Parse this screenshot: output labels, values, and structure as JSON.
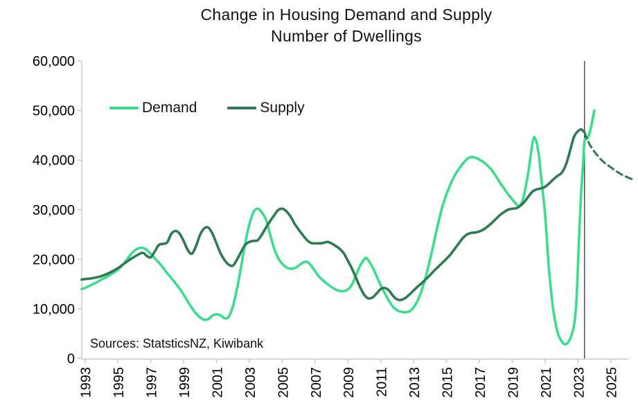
{
  "chart_data": {
    "type": "line",
    "title": "Change in Housing Demand and Supply",
    "subtitle": "Number of Dwellings",
    "source_note": "Sources: StatsticsNZ, Kiwibank",
    "grid": false,
    "legend_position": "top-left-inside",
    "xlabel": "",
    "ylabel": "",
    "xlim": [
      1992.8,
      2026.6
    ],
    "ylim": [
      0,
      60000
    ],
    "x_ticks": [
      1993,
      1995,
      1997,
      1999,
      2001,
      2003,
      2005,
      2007,
      2009,
      2011,
      2013,
      2015,
      2017,
      2019,
      2021,
      2023,
      2025
    ],
    "y_ticks": [
      {
        "value": 0,
        "label": "0"
      },
      {
        "value": 10000,
        "label": "10,000"
      },
      {
        "value": 20000,
        "label": "20,000"
      },
      {
        "value": 30000,
        "label": "30,000"
      },
      {
        "value": 40000,
        "label": "40,000"
      },
      {
        "value": 50000,
        "label": "50,000"
      },
      {
        "value": 60000,
        "label": "60,000"
      }
    ],
    "colors": {
      "demand": "#3BDD8D",
      "supply": "#2E7B52",
      "axis": "#c8c8c8",
      "forecast_divider": "#3f3f3f",
      "background": "#ffffff"
    },
    "forecast_divider_x": 2023.4,
    "series": [
      {
        "name": "Demand",
        "color": "#3BDD8D",
        "style": "solid",
        "in_legend": true,
        "points": [
          [
            1992.8,
            14000
          ],
          [
            1993,
            14200
          ],
          [
            1993.25,
            14600
          ],
          [
            1993.5,
            15000
          ],
          [
            1993.75,
            15400
          ],
          [
            1994,
            15900
          ],
          [
            1994.25,
            16300
          ],
          [
            1994.5,
            16800
          ],
          [
            1994.75,
            17300
          ],
          [
            1995,
            17900
          ],
          [
            1995.25,
            18700
          ],
          [
            1995.5,
            19700
          ],
          [
            1995.75,
            20800
          ],
          [
            1996,
            21700
          ],
          [
            1996.25,
            22200
          ],
          [
            1996.5,
            22300
          ],
          [
            1996.75,
            21900
          ],
          [
            1997,
            21100
          ],
          [
            1997.25,
            20200
          ],
          [
            1997.5,
            19300
          ],
          [
            1997.75,
            18300
          ],
          [
            1998,
            17200
          ],
          [
            1998.25,
            16200
          ],
          [
            1998.5,
            15200
          ],
          [
            1998.75,
            14100
          ],
          [
            1999,
            12900
          ],
          [
            1999.25,
            11500
          ],
          [
            1999.5,
            10200
          ],
          [
            1999.75,
            9100
          ],
          [
            2000,
            8300
          ],
          [
            2000.25,
            7800
          ],
          [
            2000.5,
            7900
          ],
          [
            2000.75,
            8600
          ],
          [
            2001,
            8900
          ],
          [
            2001.25,
            8700
          ],
          [
            2001.5,
            8100
          ],
          [
            2001.75,
            8400
          ],
          [
            2002,
            10500
          ],
          [
            2002.25,
            14000
          ],
          [
            2002.5,
            18500
          ],
          [
            2002.75,
            23200
          ],
          [
            2003,
            27000
          ],
          [
            2003.25,
            29500
          ],
          [
            2003.5,
            30200
          ],
          [
            2003.75,
            29500
          ],
          [
            2004,
            28100
          ],
          [
            2004.25,
            25200
          ],
          [
            2004.5,
            22300
          ],
          [
            2004.75,
            20300
          ],
          [
            2005,
            19100
          ],
          [
            2005.25,
            18400
          ],
          [
            2005.5,
            18100
          ],
          [
            2005.75,
            18200
          ],
          [
            2006,
            18700
          ],
          [
            2006.25,
            19300
          ],
          [
            2006.5,
            19500
          ],
          [
            2006.75,
            18800
          ],
          [
            2007,
            17600
          ],
          [
            2007.25,
            16500
          ],
          [
            2007.5,
            15700
          ],
          [
            2007.75,
            15000
          ],
          [
            2008,
            14400
          ],
          [
            2008.25,
            13900
          ],
          [
            2008.5,
            13600
          ],
          [
            2008.75,
            13600
          ],
          [
            2009,
            13900
          ],
          [
            2009.25,
            14900
          ],
          [
            2009.5,
            16800
          ],
          [
            2009.75,
            18700
          ],
          [
            2010,
            20000
          ],
          [
            2010.15,
            20200
          ],
          [
            2010.5,
            18400
          ],
          [
            2010.75,
            16600
          ],
          [
            2011,
            14700
          ],
          [
            2011.25,
            13100
          ],
          [
            2011.5,
            11600
          ],
          [
            2011.75,
            10400
          ],
          [
            2012,
            9700
          ],
          [
            2012.25,
            9400
          ],
          [
            2012.5,
            9300
          ],
          [
            2012.75,
            9500
          ],
          [
            2013,
            10300
          ],
          [
            2013.25,
            11700
          ],
          [
            2013.5,
            13800
          ],
          [
            2013.75,
            16600
          ],
          [
            2014,
            19900
          ],
          [
            2014.25,
            23600
          ],
          [
            2014.5,
            27300
          ],
          [
            2014.75,
            30600
          ],
          [
            2015,
            33100
          ],
          [
            2015.25,
            35200
          ],
          [
            2015.5,
            36900
          ],
          [
            2015.75,
            38200
          ],
          [
            2016,
            39300
          ],
          [
            2016.25,
            40200
          ],
          [
            2016.5,
            40600
          ],
          [
            2016.75,
            40500
          ],
          [
            2017,
            40100
          ],
          [
            2017.25,
            39600
          ],
          [
            2017.5,
            38900
          ],
          [
            2017.75,
            38000
          ],
          [
            2018,
            36800
          ],
          [
            2018.25,
            35500
          ],
          [
            2018.5,
            34300
          ],
          [
            2018.75,
            33100
          ],
          [
            2019,
            32100
          ],
          [
            2019.25,
            31100
          ],
          [
            2019.4,
            30700
          ],
          [
            2019.6,
            31600
          ],
          [
            2019.75,
            33400
          ],
          [
            2020,
            38000
          ],
          [
            2020.25,
            43700
          ],
          [
            2020.4,
            44400
          ],
          [
            2020.6,
            41500
          ],
          [
            2020.75,
            37000
          ],
          [
            2021,
            29000
          ],
          [
            2021.25,
            17500
          ],
          [
            2021.5,
            9800
          ],
          [
            2021.75,
            5400
          ],
          [
            2022,
            3500
          ],
          [
            2022.25,
            2850
          ],
          [
            2022.5,
            3800
          ],
          [
            2022.75,
            6500
          ],
          [
            2022.9,
            11000
          ],
          [
            2023,
            18700
          ],
          [
            2023.1,
            27000
          ],
          [
            2023.2,
            33500
          ],
          [
            2023.3,
            38500
          ],
          [
            2023.4,
            43800
          ],
          [
            2023.55,
            44300
          ],
          [
            2023.7,
            45300
          ],
          [
            2023.85,
            47500
          ],
          [
            2024,
            50000
          ]
        ]
      },
      {
        "name": "Supply",
        "color": "#2E7B52",
        "style": "solid",
        "in_legend": true,
        "points": [
          [
            1992.8,
            15900
          ],
          [
            1993,
            16000
          ],
          [
            1993.5,
            16200
          ],
          [
            1994,
            16600
          ],
          [
            1994.5,
            17300
          ],
          [
            1995,
            18200
          ],
          [
            1995.5,
            19400
          ],
          [
            1996,
            20500
          ],
          [
            1996.5,
            21300
          ],
          [
            1996.75,
            20700
          ],
          [
            1997,
            20400
          ],
          [
            1997.25,
            21600
          ],
          [
            1997.5,
            22900
          ],
          [
            1997.75,
            23100
          ],
          [
            1998,
            23400
          ],
          [
            1998.25,
            25100
          ],
          [
            1998.5,
            25700
          ],
          [
            1998.75,
            25200
          ],
          [
            1999,
            23700
          ],
          [
            1999.25,
            21900
          ],
          [
            1999.5,
            21100
          ],
          [
            1999.75,
            22600
          ],
          [
            2000,
            24900
          ],
          [
            2000.25,
            26200
          ],
          [
            2000.5,
            26400
          ],
          [
            2000.75,
            25200
          ],
          [
            2001,
            23200
          ],
          [
            2001.25,
            21200
          ],
          [
            2001.5,
            19800
          ],
          [
            2001.75,
            18900
          ],
          [
            2002,
            18700
          ],
          [
            2002.25,
            19900
          ],
          [
            2002.5,
            21500
          ],
          [
            2002.75,
            22900
          ],
          [
            2003,
            23500
          ],
          [
            2003.25,
            23700
          ],
          [
            2003.5,
            23800
          ],
          [
            2003.75,
            24900
          ],
          [
            2004,
            26300
          ],
          [
            2004.25,
            27600
          ],
          [
            2004.5,
            28800
          ],
          [
            2004.75,
            29900
          ],
          [
            2005,
            30200
          ],
          [
            2005.25,
            29700
          ],
          [
            2005.5,
            28700
          ],
          [
            2005.75,
            27200
          ],
          [
            2006,
            26000
          ],
          [
            2006.25,
            24900
          ],
          [
            2006.5,
            23900
          ],
          [
            2006.75,
            23300
          ],
          [
            2007,
            23200
          ],
          [
            2007.25,
            23200
          ],
          [
            2007.5,
            23300
          ],
          [
            2007.75,
            23500
          ],
          [
            2008,
            23200
          ],
          [
            2008.25,
            22700
          ],
          [
            2008.5,
            22100
          ],
          [
            2008.75,
            21200
          ],
          [
            2009,
            19700
          ],
          [
            2009.25,
            18100
          ],
          [
            2009.5,
            16200
          ],
          [
            2009.75,
            14300
          ],
          [
            2010,
            12800
          ],
          [
            2010.25,
            12100
          ],
          [
            2010.5,
            12300
          ],
          [
            2010.75,
            13100
          ],
          [
            2011,
            14000
          ],
          [
            2011.25,
            14200
          ],
          [
            2011.5,
            13700
          ],
          [
            2011.75,
            12600
          ],
          [
            2012,
            11900
          ],
          [
            2012.25,
            11800
          ],
          [
            2012.5,
            12200
          ],
          [
            2012.75,
            12900
          ],
          [
            2013,
            13700
          ],
          [
            2013.25,
            14500
          ],
          [
            2013.5,
            15200
          ],
          [
            2013.75,
            16000
          ],
          [
            2014,
            16800
          ],
          [
            2014.25,
            17700
          ],
          [
            2014.5,
            18500
          ],
          [
            2014.75,
            19300
          ],
          [
            2015,
            20100
          ],
          [
            2015.25,
            21000
          ],
          [
            2015.5,
            22100
          ],
          [
            2015.75,
            23200
          ],
          [
            2016,
            24300
          ],
          [
            2016.25,
            25000
          ],
          [
            2016.5,
            25300
          ],
          [
            2016.75,
            25400
          ],
          [
            2017,
            25600
          ],
          [
            2017.25,
            26000
          ],
          [
            2017.5,
            26600
          ],
          [
            2017.75,
            27300
          ],
          [
            2018,
            28100
          ],
          [
            2018.25,
            28900
          ],
          [
            2018.5,
            29500
          ],
          [
            2018.75,
            30000
          ],
          [
            2019,
            30200
          ],
          [
            2019.25,
            30300
          ],
          [
            2019.5,
            30800
          ],
          [
            2019.75,
            31600
          ],
          [
            2020,
            32700
          ],
          [
            2020.25,
            33700
          ],
          [
            2020.5,
            34100
          ],
          [
            2020.75,
            34300
          ],
          [
            2021,
            34600
          ],
          [
            2021.25,
            35300
          ],
          [
            2021.5,
            36100
          ],
          [
            2021.75,
            36800
          ],
          [
            2022,
            37400
          ],
          [
            2022.25,
            38900
          ],
          [
            2022.5,
            41600
          ],
          [
            2022.75,
            44600
          ],
          [
            2023,
            45800
          ],
          [
            2023.2,
            46200
          ],
          [
            2023.4,
            45600
          ]
        ]
      },
      {
        "name": "Supply forecast",
        "color": "#2E7B52",
        "style": "dashed",
        "in_legend": false,
        "points": [
          [
            2023.4,
            45600
          ],
          [
            2023.6,
            43900
          ],
          [
            2023.85,
            42400
          ],
          [
            2024.1,
            41300
          ],
          [
            2024.35,
            40300
          ],
          [
            2024.6,
            39500
          ],
          [
            2024.85,
            38900
          ],
          [
            2025.1,
            38300
          ],
          [
            2025.35,
            37700
          ],
          [
            2025.6,
            37200
          ],
          [
            2025.85,
            36800
          ],
          [
            2026.1,
            36400
          ],
          [
            2026.35,
            36100
          ]
        ]
      }
    ]
  }
}
